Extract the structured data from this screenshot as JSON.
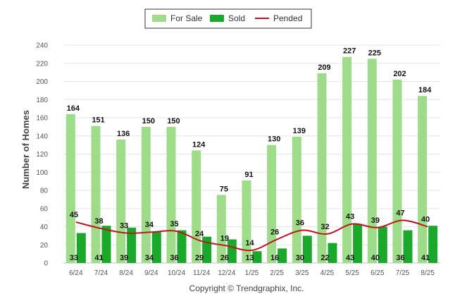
{
  "chart_data": {
    "type": "bar",
    "categories": [
      "6/24",
      "7/24",
      "8/24",
      "9/24",
      "10/24",
      "11/24",
      "12/24",
      "1/25",
      "2/25",
      "3/25",
      "4/25",
      "5/25",
      "6/25",
      "7/25",
      "8/25"
    ],
    "series": [
      {
        "name": "For Sale",
        "kind": "bar",
        "color": "#9fdc8a",
        "values": [
          164,
          151,
          136,
          150,
          150,
          124,
          75,
          91,
          130,
          139,
          209,
          227,
          225,
          202,
          184
        ]
      },
      {
        "name": "Sold",
        "kind": "bar",
        "color": "#1aa82a",
        "values": [
          33,
          41,
          39,
          34,
          36,
          29,
          26,
          13,
          16,
          30,
          22,
          43,
          40,
          36,
          41
        ]
      },
      {
        "name": "Pended",
        "kind": "line",
        "color": "#c0141c",
        "values": [
          45,
          38,
          33,
          34,
          35,
          24,
          19,
          14,
          26,
          36,
          32,
          43,
          39,
          47,
          40
        ]
      }
    ],
    "ylabel": "Number of Homes",
    "yticks": [
      0,
      20,
      40,
      60,
      80,
      100,
      120,
      140,
      160,
      180,
      200,
      220,
      240
    ],
    "ylim": [
      0,
      240
    ],
    "grid": true,
    "legend_position": "top-center",
    "credit": "Copyright © Trendgraphix, Inc."
  }
}
